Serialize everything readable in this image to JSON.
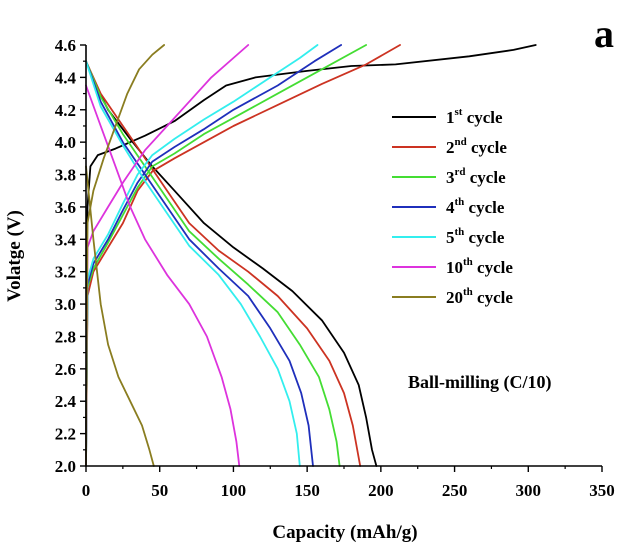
{
  "chart_data": {
    "type": "line",
    "panel_label": "a",
    "xlabel": "Capacity (mAh/g)",
    "ylabel": "Volatge (V)",
    "xlim": [
      0,
      350
    ],
    "ylim": [
      2.0,
      4.6
    ],
    "x_ticks": [
      0,
      50,
      100,
      150,
      200,
      250,
      300,
      350
    ],
    "y_ticks": [
      2.0,
      2.2,
      2.4,
      2.6,
      2.8,
      3.0,
      3.2,
      3.4,
      3.6,
      3.8,
      4.0,
      4.2,
      4.4,
      4.6
    ],
    "annotation": "Ball-milling (C/10)",
    "legend_position": "right",
    "series": [
      {
        "name": "1st cycle",
        "legend_main": "1",
        "legend_sup": "st",
        "legend_rest": " cycle",
        "color": "#000000",
        "charge": [
          [
            0,
            2.0
          ],
          [
            0.5,
            3.2
          ],
          [
            1,
            3.6
          ],
          [
            3,
            3.85
          ],
          [
            8,
            3.92
          ],
          [
            20,
            3.96
          ],
          [
            40,
            4.04
          ],
          [
            60,
            4.13
          ],
          [
            80,
            4.26
          ],
          [
            95,
            4.35
          ],
          [
            115,
            4.4
          ],
          [
            150,
            4.44
          ],
          [
            180,
            4.47
          ],
          [
            210,
            4.48
          ],
          [
            260,
            4.53
          ],
          [
            290,
            4.57
          ],
          [
            305,
            4.6
          ]
        ],
        "discharge": [
          [
            0,
            4.5
          ],
          [
            5,
            4.38
          ],
          [
            15,
            4.2
          ],
          [
            30,
            4.02
          ],
          [
            45,
            3.85
          ],
          [
            60,
            3.7
          ],
          [
            80,
            3.5
          ],
          [
            100,
            3.35
          ],
          [
            120,
            3.22
          ],
          [
            140,
            3.08
          ],
          [
            160,
            2.9
          ],
          [
            175,
            2.7
          ],
          [
            185,
            2.5
          ],
          [
            190,
            2.3
          ],
          [
            194,
            2.1
          ],
          [
            197,
            2.0
          ]
        ]
      },
      {
        "name": "2nd cycle",
        "legend_main": "2",
        "legend_sup": "nd",
        "legend_rest": " cycle",
        "color": "#cc3322",
        "charge": [
          [
            0,
            2.0
          ],
          [
            1,
            3.05
          ],
          [
            5,
            3.2
          ],
          [
            15,
            3.35
          ],
          [
            25,
            3.5
          ],
          [
            35,
            3.7
          ],
          [
            45,
            3.82
          ],
          [
            60,
            3.9
          ],
          [
            80,
            4.0
          ],
          [
            100,
            4.1
          ],
          [
            130,
            4.23
          ],
          [
            160,
            4.36
          ],
          [
            190,
            4.48
          ],
          [
            213,
            4.6
          ]
        ],
        "discharge": [
          [
            0,
            4.5
          ],
          [
            10,
            4.3
          ],
          [
            25,
            4.1
          ],
          [
            40,
            3.9
          ],
          [
            55,
            3.7
          ],
          [
            70,
            3.5
          ],
          [
            90,
            3.33
          ],
          [
            110,
            3.2
          ],
          [
            130,
            3.05
          ],
          [
            150,
            2.85
          ],
          [
            165,
            2.65
          ],
          [
            175,
            2.45
          ],
          [
            181,
            2.25
          ],
          [
            186,
            2.0
          ]
        ]
      },
      {
        "name": "3rd cycle",
        "legend_main": "3",
        "legend_sup": "rd",
        "legend_rest": " cycle",
        "color": "#44dd33",
        "charge": [
          [
            0,
            2.0
          ],
          [
            1,
            3.1
          ],
          [
            5,
            3.22
          ],
          [
            15,
            3.38
          ],
          [
            25,
            3.55
          ],
          [
            35,
            3.72
          ],
          [
            45,
            3.85
          ],
          [
            60,
            3.93
          ],
          [
            80,
            4.05
          ],
          [
            100,
            4.15
          ],
          [
            130,
            4.3
          ],
          [
            160,
            4.45
          ],
          [
            190,
            4.6
          ]
        ],
        "discharge": [
          [
            0,
            4.5
          ],
          [
            10,
            4.28
          ],
          [
            25,
            4.05
          ],
          [
            40,
            3.85
          ],
          [
            55,
            3.65
          ],
          [
            70,
            3.45
          ],
          [
            90,
            3.28
          ],
          [
            110,
            3.12
          ],
          [
            130,
            2.95
          ],
          [
            145,
            2.75
          ],
          [
            158,
            2.55
          ],
          [
            165,
            2.35
          ],
          [
            170,
            2.15
          ],
          [
            172,
            2.0
          ]
        ]
      },
      {
        "name": "4th cycle",
        "legend_main": "4",
        "legend_sup": "th",
        "legend_rest": " cycle",
        "color": "#1f2fbb",
        "charge": [
          [
            0,
            2.0
          ],
          [
            1,
            3.12
          ],
          [
            5,
            3.25
          ],
          [
            15,
            3.4
          ],
          [
            25,
            3.58
          ],
          [
            35,
            3.75
          ],
          [
            45,
            3.88
          ],
          [
            60,
            3.97
          ],
          [
            80,
            4.08
          ],
          [
            100,
            4.2
          ],
          [
            130,
            4.35
          ],
          [
            155,
            4.5
          ],
          [
            173,
            4.6
          ]
        ],
        "discharge": [
          [
            0,
            4.5
          ],
          [
            10,
            4.25
          ],
          [
            25,
            4.0
          ],
          [
            40,
            3.8
          ],
          [
            55,
            3.6
          ],
          [
            70,
            3.4
          ],
          [
            90,
            3.22
          ],
          [
            110,
            3.05
          ],
          [
            125,
            2.85
          ],
          [
            138,
            2.65
          ],
          [
            146,
            2.45
          ],
          [
            151,
            2.25
          ],
          [
            154,
            2.0
          ]
        ]
      },
      {
        "name": "5th cycle",
        "legend_main": "5",
        "legend_sup": "th",
        "legend_rest": " cycle",
        "color": "#33eeee",
        "charge": [
          [
            0,
            2.0
          ],
          [
            1,
            3.15
          ],
          [
            5,
            3.28
          ],
          [
            15,
            3.43
          ],
          [
            25,
            3.62
          ],
          [
            35,
            3.8
          ],
          [
            45,
            3.92
          ],
          [
            60,
            4.02
          ],
          [
            80,
            4.14
          ],
          [
            100,
            4.25
          ],
          [
            125,
            4.4
          ],
          [
            145,
            4.52
          ],
          [
            157,
            4.6
          ]
        ],
        "discharge": [
          [
            0,
            4.5
          ],
          [
            10,
            4.22
          ],
          [
            25,
            3.98
          ],
          [
            40,
            3.76
          ],
          [
            55,
            3.56
          ],
          [
            70,
            3.36
          ],
          [
            90,
            3.18
          ],
          [
            105,
            3.0
          ],
          [
            118,
            2.8
          ],
          [
            130,
            2.6
          ],
          [
            138,
            2.4
          ],
          [
            143,
            2.2
          ],
          [
            145,
            2.0
          ]
        ]
      },
      {
        "name": "10th cycle",
        "legend_main": "10",
        "legend_sup": "th",
        "legend_rest": " cycle",
        "color": "#dd33dd",
        "charge": [
          [
            0,
            2.0
          ],
          [
            1,
            3.35
          ],
          [
            5,
            3.45
          ],
          [
            15,
            3.6
          ],
          [
            25,
            3.75
          ],
          [
            40,
            3.95
          ],
          [
            55,
            4.1
          ],
          [
            70,
            4.25
          ],
          [
            85,
            4.4
          ],
          [
            100,
            4.52
          ],
          [
            110,
            4.6
          ]
        ],
        "discharge": [
          [
            0,
            4.35
          ],
          [
            10,
            4.1
          ],
          [
            20,
            3.85
          ],
          [
            30,
            3.6
          ],
          [
            40,
            3.4
          ],
          [
            55,
            3.18
          ],
          [
            70,
            3.0
          ],
          [
            82,
            2.8
          ],
          [
            92,
            2.55
          ],
          [
            98,
            2.35
          ],
          [
            102,
            2.15
          ],
          [
            104,
            2.0
          ]
        ]
      },
      {
        "name": "20th cycle",
        "legend_main": "20",
        "legend_sup": "th",
        "legend_rest": " cycle",
        "color": "#8a7d20",
        "charge": [
          [
            0,
            2.0
          ],
          [
            1,
            3.5
          ],
          [
            5,
            3.7
          ],
          [
            12,
            3.9
          ],
          [
            20,
            4.1
          ],
          [
            28,
            4.3
          ],
          [
            36,
            4.45
          ],
          [
            45,
            4.54
          ],
          [
            53,
            4.6
          ]
        ],
        "discharge": [
          [
            0,
            3.85
          ],
          [
            5,
            3.4
          ],
          [
            10,
            3.0
          ],
          [
            15,
            2.75
          ],
          [
            22,
            2.55
          ],
          [
            30,
            2.4
          ],
          [
            38,
            2.25
          ],
          [
            43,
            2.1
          ],
          [
            46,
            2.0
          ]
        ]
      }
    ]
  }
}
